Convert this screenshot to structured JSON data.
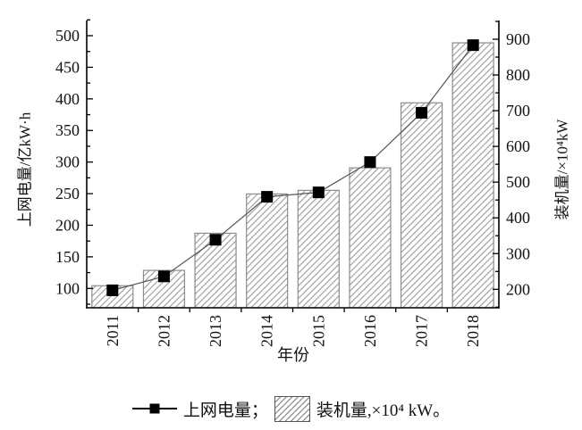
{
  "figure": {
    "background": "#ffffff",
    "text_color": "#111111",
    "axis_color": "#000000"
  },
  "chart_data": {
    "type": "bar+line",
    "title": "",
    "xlabel": "年份",
    "categories": [
      "2011",
      "2012",
      "2013",
      "2014",
      "2015",
      "2016",
      "2017",
      "2018"
    ],
    "series": [
      {
        "name": "上网电量",
        "type": "line",
        "axis": "left",
        "marker": "filled-square",
        "line_color": "#555555",
        "marker_color": "#000000",
        "values": [
          97,
          119,
          177,
          245,
          252,
          300,
          378,
          485
        ]
      },
      {
        "name": "装机量",
        "type": "bar",
        "axis": "right",
        "fill": "diagonal-hatch",
        "hatch_color": "#9a9a9a",
        "border_color": "#8c8c8c",
        "values": [
          210,
          253,
          357,
          467,
          477,
          540,
          722,
          890
        ]
      }
    ],
    "left_axis": {
      "label": "上网电量/亿kW·h",
      "min": 100,
      "max": 500,
      "tick_step": 50,
      "minor_step": 25,
      "ticks": [
        100,
        150,
        200,
        250,
        300,
        350,
        400,
        450,
        500
      ]
    },
    "right_axis": {
      "label": "装机量/×10⁴kW",
      "min": 200,
      "max": 900,
      "tick_step": 100,
      "minor_step": 50,
      "ticks": [
        200,
        300,
        400,
        500,
        600,
        700,
        800,
        900
      ]
    },
    "legend": {
      "line_label": "上网电量；",
      "bar_label": "装机量,×10⁴ kW。"
    },
    "layout_hints": {
      "grid": false,
      "legend_position": "bottom",
      "x_tick_rotation": -90
    }
  }
}
